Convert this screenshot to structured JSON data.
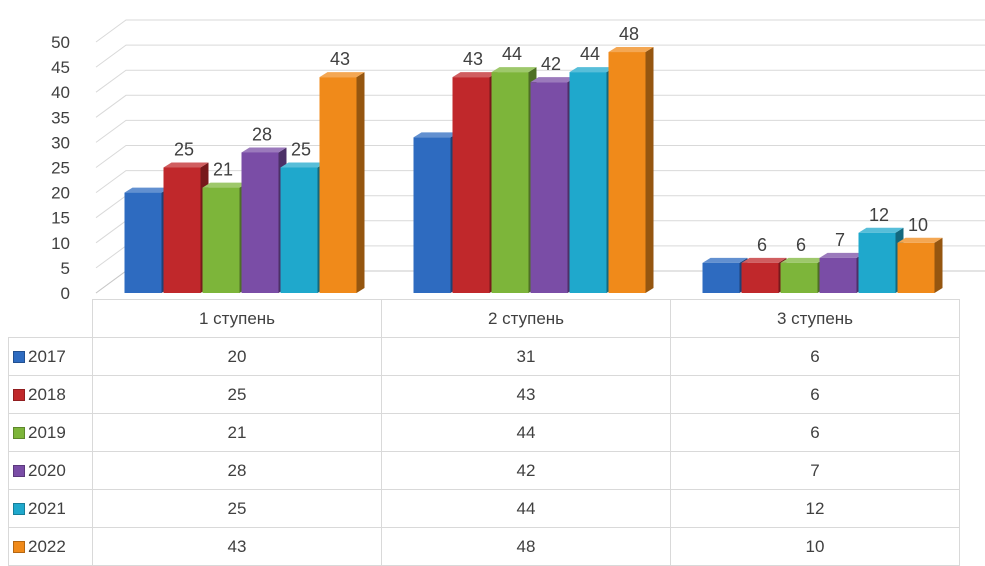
{
  "chart_data": {
    "type": "bar",
    "categories": [
      "1 ступень",
      "2 ступень",
      "3 ступень"
    ],
    "series": [
      {
        "name": "2017",
        "values": [
          20,
          31,
          6
        ],
        "color": "#2e6bc0",
        "labeled": [
          false,
          false,
          false
        ]
      },
      {
        "name": "2018",
        "values": [
          25,
          43,
          6
        ],
        "color": "#c0282b",
        "labeled": [
          true,
          true,
          true
        ]
      },
      {
        "name": "2019",
        "values": [
          21,
          44,
          6
        ],
        "color": "#7db53a",
        "labeled": [
          true,
          true,
          true
        ]
      },
      {
        "name": "2020",
        "values": [
          28,
          42,
          7
        ],
        "color": "#7a4da6",
        "labeled": [
          true,
          true,
          true
        ]
      },
      {
        "name": "2021",
        "values": [
          25,
          44,
          12
        ],
        "color": "#1fa8cc",
        "labeled": [
          true,
          true,
          true
        ]
      },
      {
        "name": "2022",
        "values": [
          43,
          48,
          10
        ],
        "color": "#f08a1a",
        "labeled": [
          true,
          true,
          true
        ]
      }
    ],
    "y_ticks": [
      "0",
      "5",
      "10",
      "15",
      "20",
      "25",
      "30",
      "35",
      "40",
      "45",
      "50"
    ],
    "ylim": [
      0,
      50
    ],
    "grid": true,
    "style": "3d-clustered-column",
    "legend": "data-table-below"
  }
}
